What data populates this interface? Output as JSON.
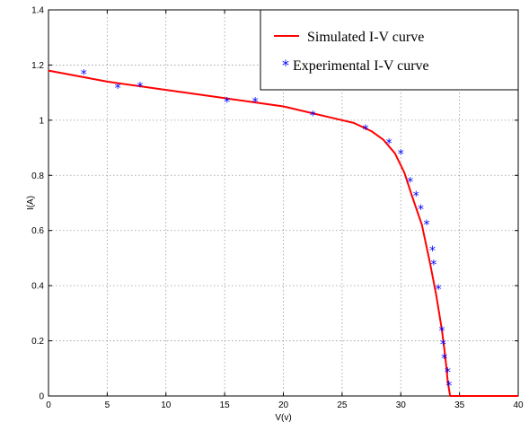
{
  "chart_data": {
    "type": "line",
    "title": "",
    "xlabel": "V(v)",
    "ylabel": "I(A)",
    "xlim": [
      0,
      40
    ],
    "ylim": [
      0,
      1.4
    ],
    "grid": true,
    "legend_position": "top-right",
    "x_ticks": [
      0,
      5,
      10,
      15,
      20,
      25,
      30,
      35,
      40
    ],
    "y_ticks": [
      0,
      0.2,
      0.4,
      0.6,
      0.8,
      1,
      1.2,
      1.4
    ],
    "x_tick_labels": [
      "0",
      "5",
      "10",
      "15",
      "20",
      "25",
      "30",
      "35",
      "40"
    ],
    "y_tick_labels": [
      "0",
      "0.2",
      "0.4",
      "0.6",
      "0.8",
      "1",
      "1.2",
      "1.4"
    ],
    "series": [
      {
        "name": "Simulated I-V curve",
        "kind": "line",
        "color": "#ff0000",
        "x": [
          0,
          5,
          10,
          15,
          20,
          24,
          26,
          27.5,
          28.5,
          29.5,
          30.3,
          31,
          31.8,
          32.5,
          33,
          33.5,
          33.8,
          34,
          34.2,
          40
        ],
        "y": [
          1.18,
          1.14,
          1.11,
          1.08,
          1.05,
          1.01,
          0.99,
          0.96,
          0.93,
          0.88,
          0.81,
          0.72,
          0.62,
          0.48,
          0.37,
          0.24,
          0.14,
          0.05,
          0,
          0
        ]
      },
      {
        "name": "Experimental I-V curve",
        "kind": "scatter",
        "marker": "*",
        "color": "#0000ff",
        "x": [
          3,
          5.9,
          7.8,
          15.2,
          17.6,
          22.5,
          27,
          29,
          30,
          30.8,
          31.3,
          31.7,
          32.2,
          32.7,
          32.8,
          33.2,
          33.5,
          33.6,
          33.7,
          34,
          34.1
        ],
        "y": [
          1.17,
          1.12,
          1.125,
          1.07,
          1.07,
          1.02,
          0.97,
          0.92,
          0.88,
          0.78,
          0.73,
          0.68,
          0.625,
          0.53,
          0.48,
          0.39,
          0.24,
          0.19,
          0.14,
          0.09,
          0.04
        ]
      }
    ]
  }
}
